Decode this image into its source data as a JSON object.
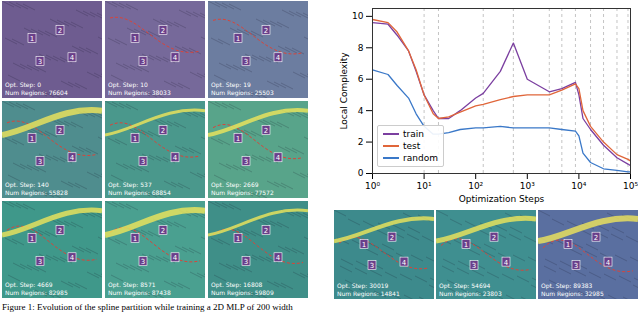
{
  "chart_data": {
    "type": "line",
    "x_label": "Optimization Steps",
    "y_label": "Local Complexity",
    "log": "x",
    "grid": false,
    "legend": "lower left",
    "x": [
      1,
      2,
      3,
      5,
      7,
      10,
      15,
      19,
      30,
      50,
      100,
      140,
      300,
      537,
      1000,
      2669,
      4669,
      8571,
      10000,
      12000,
      16808,
      30019,
      54694,
      89383,
      100000
    ],
    "series": [
      {
        "name": "train",
        "color": "#7b3fa0",
        "values": [
          9.6,
          9.5,
          8.8,
          7.8,
          6.5,
          5.0,
          4.0,
          3.5,
          3.5,
          4.0,
          4.8,
          5.1,
          6.5,
          8.3,
          6.0,
          5.2,
          5.4,
          5.8,
          5.0,
          3.5,
          2.8,
          1.8,
          1.0,
          0.6,
          0.5
        ]
      },
      {
        "name": "test",
        "color": "#e0663a",
        "values": [
          9.8,
          9.6,
          9.0,
          7.8,
          6.6,
          5.0,
          3.8,
          3.5,
          3.6,
          3.9,
          4.3,
          4.4,
          4.7,
          4.9,
          5.0,
          5.0,
          5.3,
          5.7,
          5.4,
          4.0,
          3.0,
          2.0,
          1.2,
          0.9,
          0.8
        ]
      },
      {
        "name": "random",
        "color": "#3a78c8",
        "values": [
          6.6,
          6.3,
          5.6,
          4.8,
          3.8,
          3.0,
          2.5,
          2.5,
          2.6,
          2.8,
          2.9,
          2.9,
          3.0,
          2.9,
          2.9,
          2.9,
          2.8,
          2.7,
          2.4,
          1.3,
          0.7,
          0.3,
          0.2,
          0.1,
          0.1
        ]
      }
    ],
    "xlim": [
      1,
      100000
    ],
    "xticks": [
      {
        "value": 1,
        "label": "10⁰"
      },
      {
        "value": 10,
        "label": "10¹"
      },
      {
        "value": 100,
        "label": "10²"
      },
      {
        "value": 1000,
        "label": "10³"
      },
      {
        "value": 10000,
        "label": "10⁴"
      },
      {
        "value": 100000,
        "label": "10⁵"
      }
    ],
    "ylim": [
      0,
      10.5
    ],
    "yticks": [
      0,
      2,
      4,
      6,
      8,
      10
    ]
  },
  "point_labels": [
    "1",
    "2",
    "3",
    "4"
  ],
  "panels": [
    {
      "step": 0,
      "step_label": "Opt. Step: 0",
      "regions_label": "Num Regions: 76604",
      "color": "#6e5c90"
    },
    {
      "step": 10,
      "step_label": "Opt. Step: 10",
      "regions_label": "Num Regions: 38033",
      "color": "#76699a"
    },
    {
      "step": 19,
      "step_label": "Opt. Step: 19",
      "regions_label": "Num Regions: 25503",
      "color": "#6c7da0"
    },
    {
      "step": 140,
      "step_label": "Opt. Step: 140",
      "regions_label": "Num Regions: 55828",
      "color": "#4f8d8e"
    },
    {
      "step": 537,
      "step_label": "Opt. Step: 537",
      "regions_label": "Num Regions: 68854",
      "color": "#4a988c"
    },
    {
      "step": 2669,
      "step_label": "Opt. Step: 2669",
      "regions_label": "Num Regions: 77572",
      "color": "#58a48a"
    },
    {
      "step": 4669,
      "step_label": "Opt. Step: 4669",
      "regions_label": "Num Regions: 82985",
      "color": "#3f988a"
    },
    {
      "step": 8571,
      "step_label": "Opt. Step: 8571",
      "regions_label": "Num Regions: 87438",
      "color": "#4aa090"
    },
    {
      "step": 16808,
      "step_label": "Opt. Step: 16808",
      "regions_label": "Num Regions: 59809",
      "color": "#3f8f88"
    },
    {
      "step": 30019,
      "step_label": "Opt. Step: 30019",
      "regions_label": "Num Regions: 14841",
      "color": "#3d8a8c"
    },
    {
      "step": 54694,
      "step_label": "Opt. Step: 54694",
      "regions_label": "Num Regions: 23803",
      "color": "#3f8f90"
    },
    {
      "step": 89383,
      "step_label": "Opt. Step: 89383",
      "regions_label": "Num Regions: 32985",
      "color": "#5a6fa0"
    }
  ],
  "caption": "Figure 1: Evolution of the spline partition while training a 2D MLP of 200 width"
}
